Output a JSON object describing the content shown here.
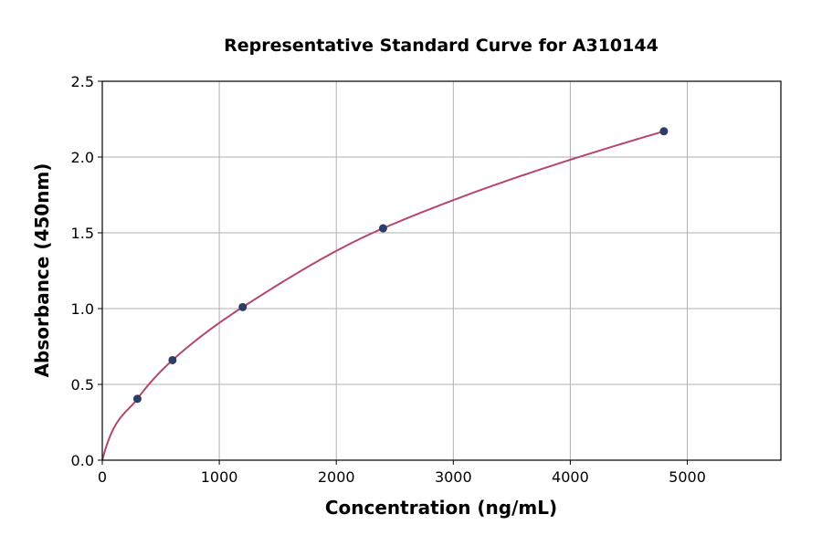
{
  "chart_data": {
    "type": "scatter",
    "title": "Representative Standard Curve for A310144",
    "xlabel": "Concentration (ng/mL)",
    "ylabel": "Absorbance (450nm)",
    "xlim": [
      0,
      5800
    ],
    "ylim": [
      0,
      2.5
    ],
    "xticks": [
      0,
      1000,
      2000,
      3000,
      4000,
      5000
    ],
    "yticks": [
      "0.0",
      "0.5",
      "1.0",
      "1.5",
      "2.0",
      "2.5"
    ],
    "grid": true,
    "series": [
      {
        "points": [
          {
            "x": 300,
            "y": 0.405
          },
          {
            "x": 600,
            "y": 0.66
          },
          {
            "x": 1200,
            "y": 1.01
          },
          {
            "x": 2400,
            "y": 1.53
          },
          {
            "x": 4800,
            "y": 2.17
          }
        ],
        "fit_curve": true
      }
    ],
    "colors": {
      "curve": "#b5476b",
      "points": "#2b3f66",
      "grid": "#b0b0b0"
    }
  }
}
